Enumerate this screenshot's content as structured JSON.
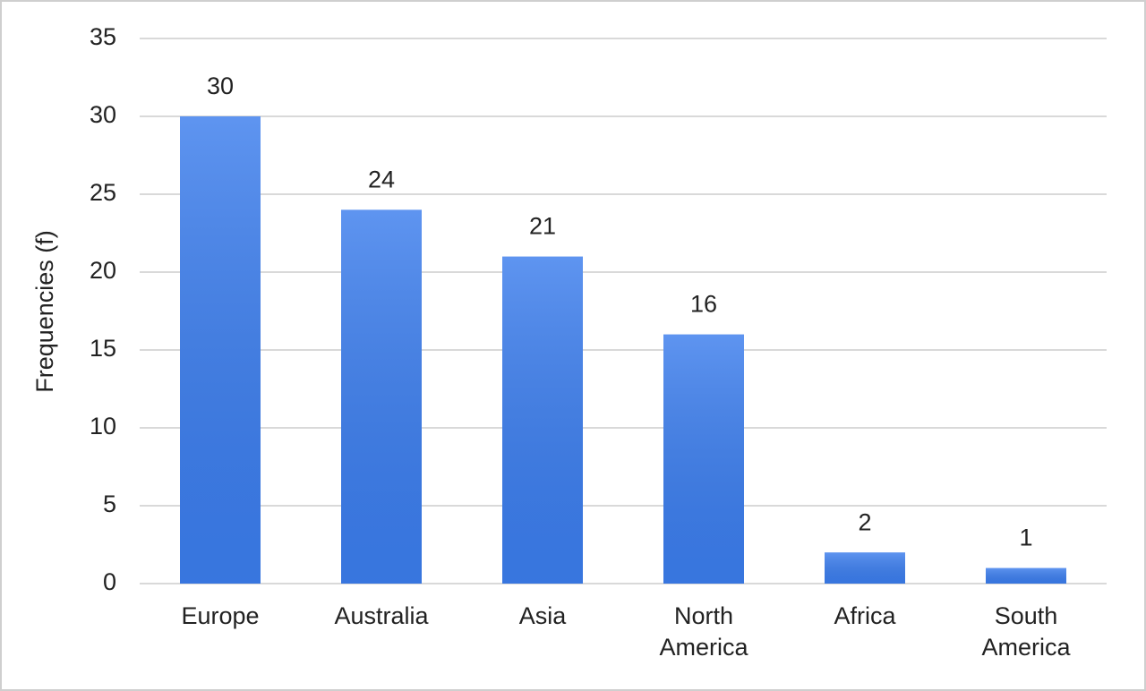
{
  "chart_data": {
    "type": "bar",
    "y_label": "Frequencies (f)",
    "categories": [
      "Europe",
      "Australia",
      "Asia",
      "North America",
      "Africa",
      "South America"
    ],
    "values": [
      30,
      24,
      21,
      16,
      2,
      1
    ],
    "color": "#3b7ded",
    "ylim": [
      0,
      35
    ],
    "yticks": [
      0,
      5,
      10,
      15,
      20,
      25,
      30,
      35
    ],
    "grid": true
  }
}
